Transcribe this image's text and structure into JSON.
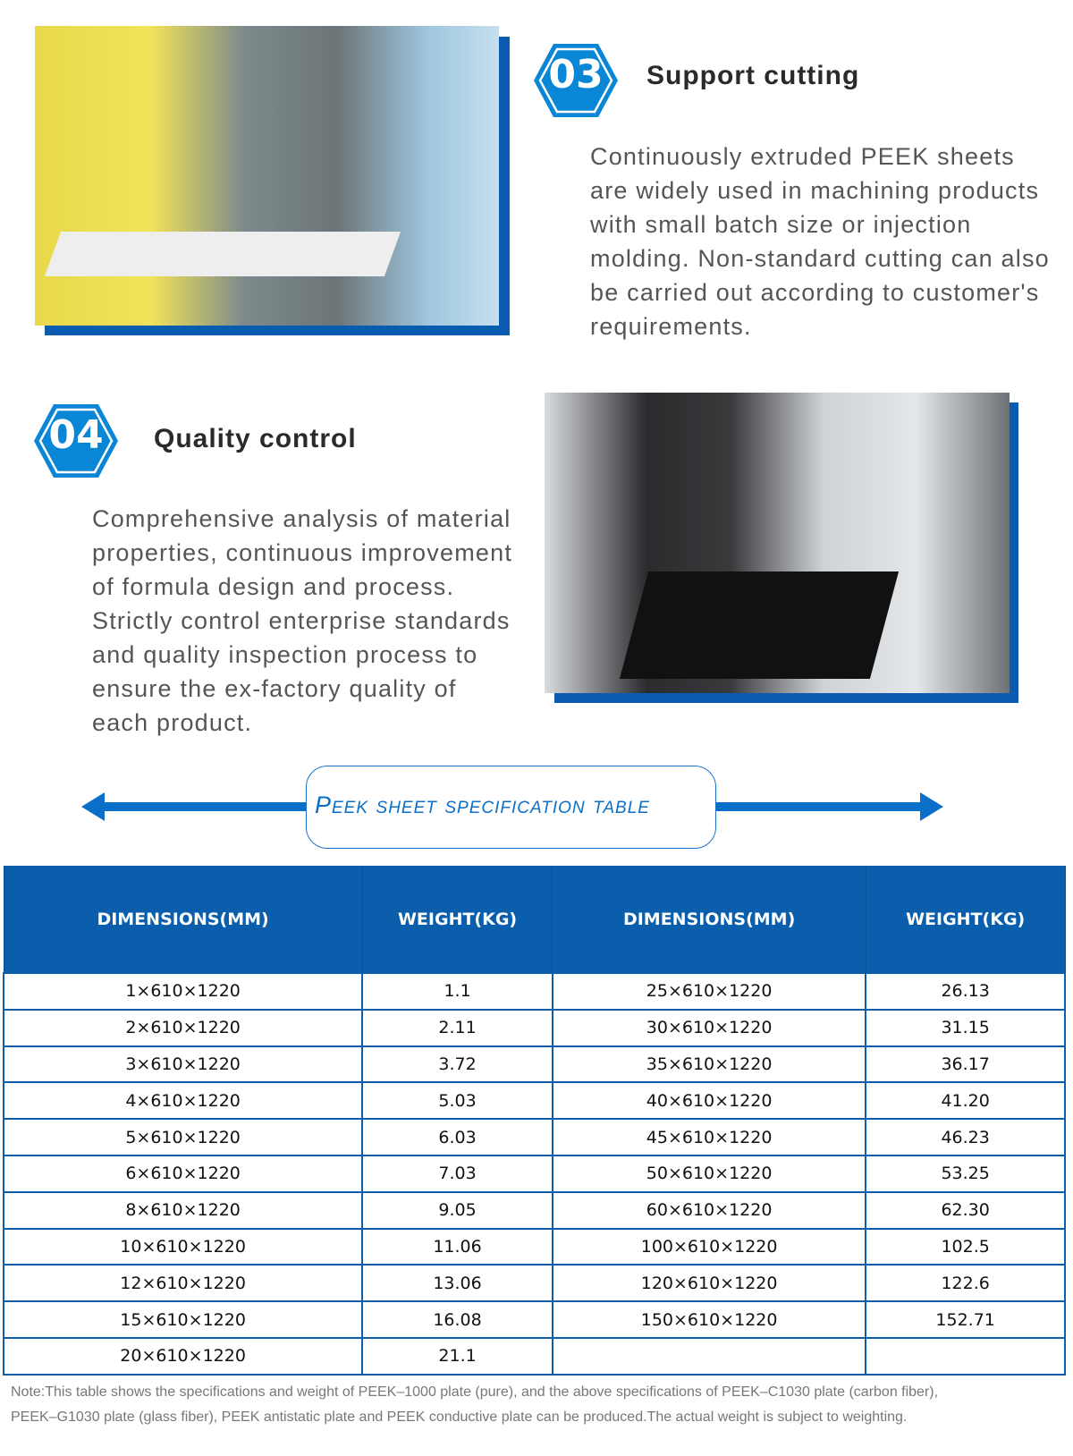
{
  "sections": [
    {
      "number": "03",
      "title": "Support cutting",
      "lines": [
        "Continuously extruded PEEK sheets",
        "are widely used in machining products",
        "with small batch size or injection",
        "molding. Non-standard cutting can also",
        "be carried out according to customer's",
        "requirements."
      ]
    },
    {
      "number": "04",
      "title": "Quality control",
      "lines": [
        "Comprehensive analysis of material",
        "properties, continuous improvement",
        "of formula design and process.",
        "Strictly control enterprise standards",
        "and quality inspection process to",
        "ensure the ex-factory quality of",
        "each product."
      ]
    }
  ],
  "banner": {
    "title": "Peek sheet specification table"
  },
  "table": {
    "headers": [
      "DIMENSIONS(MM)",
      "WEIGHT(KG)",
      "DIMENSIONS(MM)",
      "WEIGHT(KG)"
    ],
    "rows": [
      [
        "1×610×1220",
        "1.1",
        "25×610×1220",
        "26.13"
      ],
      [
        "2×610×1220",
        "2.11",
        "30×610×1220",
        "31.15"
      ],
      [
        "3×610×1220",
        "3.72",
        "35×610×1220",
        "36.17"
      ],
      [
        "4×610×1220",
        "5.03",
        "40×610×1220",
        "41.20"
      ],
      [
        "5×610×1220",
        "6.03",
        "45×610×1220",
        "46.23"
      ],
      [
        "6×610×1220",
        "7.03",
        "50×610×1220",
        "53.25"
      ],
      [
        "8×610×1220",
        "9.05",
        "60×610×1220",
        "62.30"
      ],
      [
        "10×610×1220",
        "11.06",
        "100×610×1220",
        "102.5"
      ],
      [
        "12×610×1220",
        "13.06",
        "120×610×1220",
        "122.6"
      ],
      [
        "15×610×1220",
        "16.08",
        "150×610×1220",
        "152.71"
      ],
      [
        "20×610×1220",
        "21.1",
        "",
        ""
      ]
    ]
  },
  "note": [
    "Note:This table shows the specifications and weight of PEEK–1000 plate (pure), and the above specifications of PEEK–C1030 plate (carbon fiber),",
    "PEEK–G1030 plate (glass fiber), PEEK antistatic plate and PEEK conductive plate can be produced.The actual weight is subject to weighting."
  ],
  "colors": {
    "accent": "#0a6fc8",
    "header": "#0a5eab"
  }
}
